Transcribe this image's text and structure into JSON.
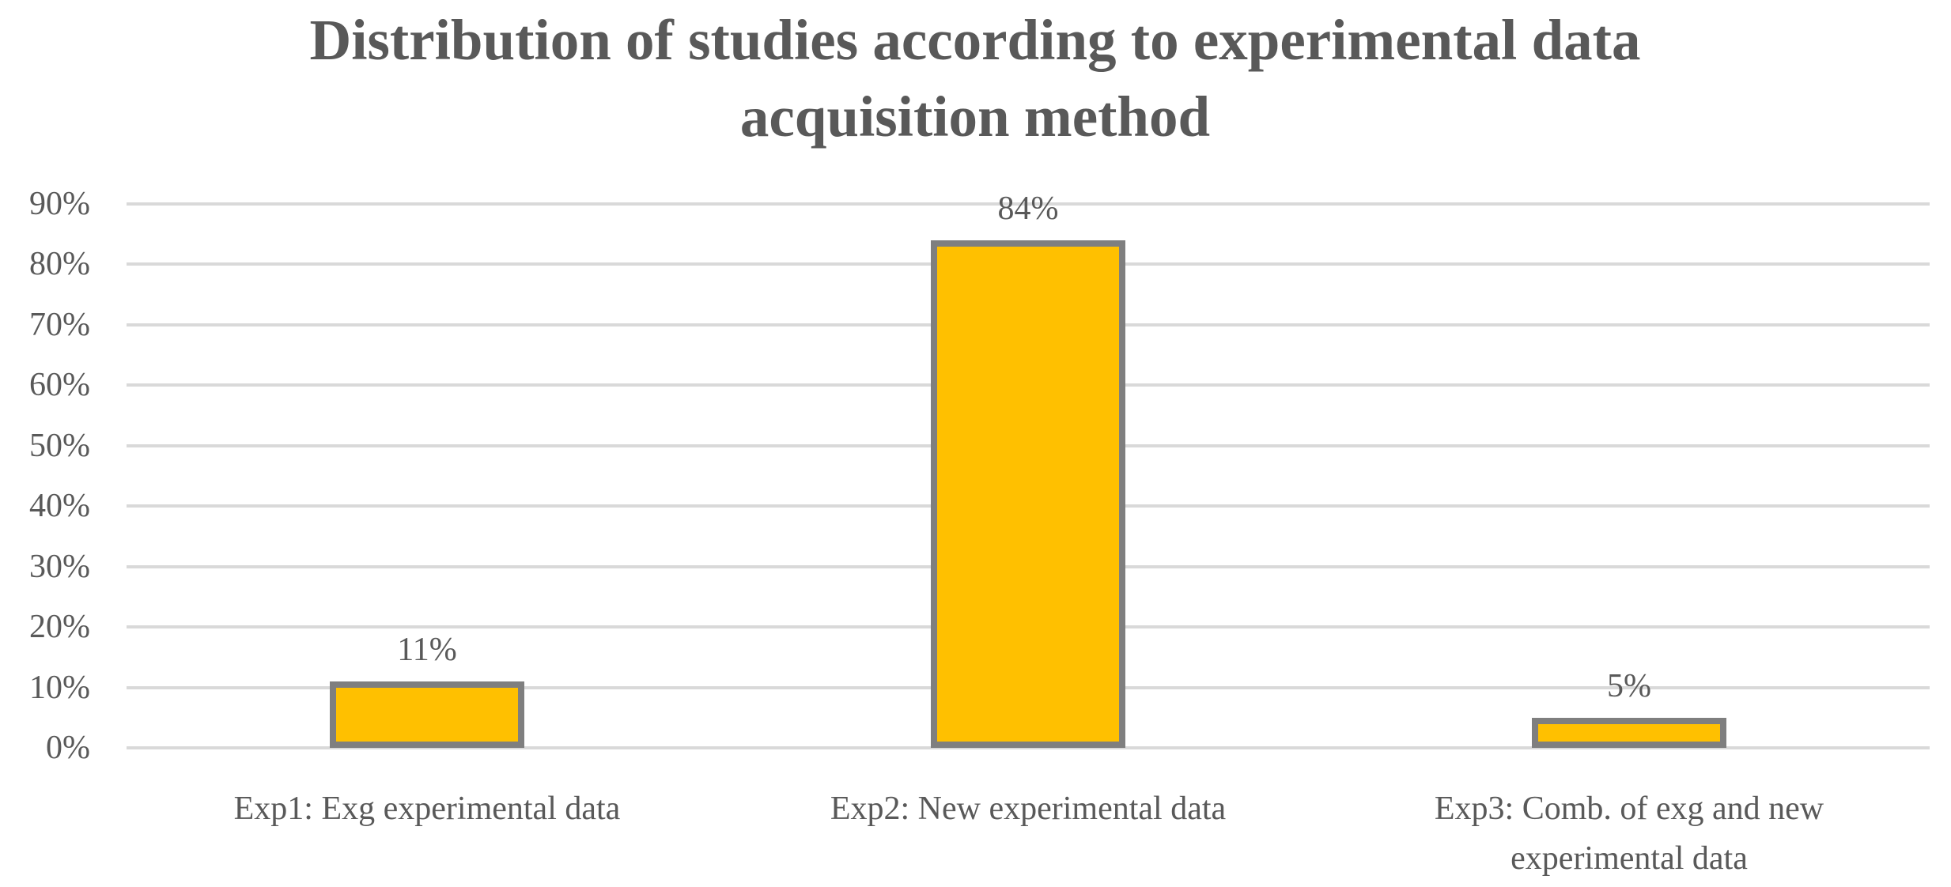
{
  "chart_data": {
    "type": "bar",
    "title": "Distribution of studies according to experimental data acquisition method",
    "categories": [
      "Exp1: Exg experimental data",
      "Exp2: New experimental data",
      "Exp3: Comb. of exg and new experimental data"
    ],
    "values": [
      11,
      84,
      5
    ],
    "data_labels": [
      "11%",
      "84%",
      "5%"
    ],
    "xlabel": "",
    "ylabel": "",
    "ylim": [
      0,
      90
    ],
    "ytick_step": 10,
    "ytick_labels": [
      "0%",
      "10%",
      "20%",
      "30%",
      "40%",
      "50%",
      "60%",
      "70%",
      "80%",
      "90%"
    ],
    "grid": "horizontal",
    "legend": "none",
    "colors": {
      "bar_fill": "#FFC000",
      "bar_border": "#7F7F7F",
      "gridline": "#D9D9D9",
      "text": "#595959"
    }
  }
}
